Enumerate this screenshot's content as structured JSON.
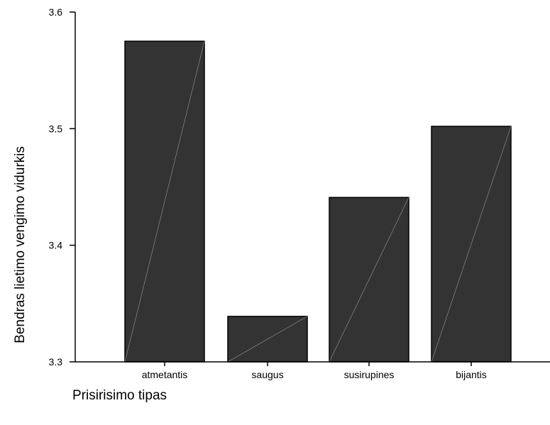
{
  "chart_data": {
    "type": "bar",
    "title": "",
    "xlabel": "Prisirisimo tipas",
    "ylabel": "Bendras lietimo vengimo vidurkis",
    "categories": [
      "atmetantis",
      "saugus",
      "susirupines",
      "bijantis"
    ],
    "values": [
      3.575,
      3.339,
      3.441,
      3.502
    ],
    "ylim": [
      3.3,
      3.6
    ],
    "yticks": [
      3.3,
      3.4,
      3.5,
      3.6
    ],
    "ytick_labels": [
      "3.3",
      "3.4",
      "3.5",
      "3.6"
    ],
    "grid": false,
    "legend": "none",
    "colors": {
      "bar_fill": "#333333",
      "bar_stroke": "#000000",
      "bar_diagonal": "#9a9a9a",
      "axis": "#000000"
    }
  }
}
